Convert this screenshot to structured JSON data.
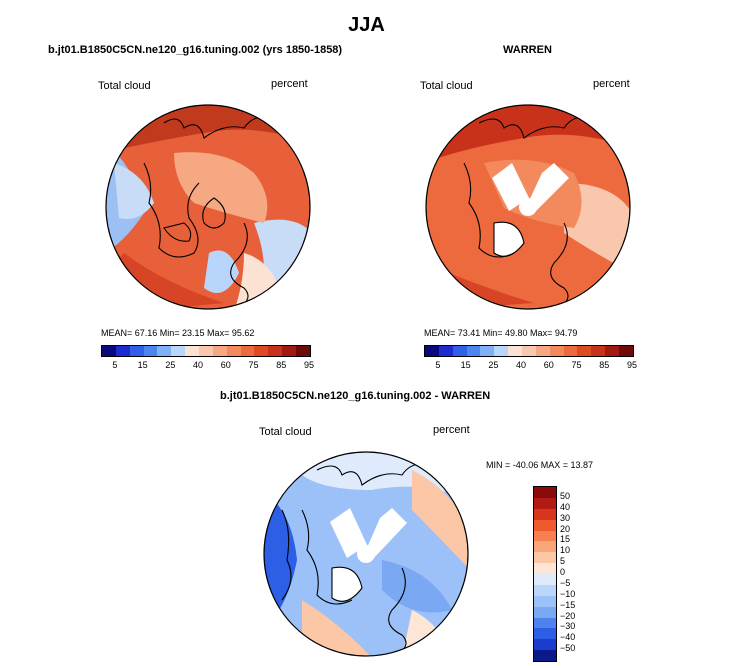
{
  "page_title": "JJA",
  "chart_data": [
    {
      "type": "polar-map",
      "title": "b.jt01.B1850C5CN.ne120_g16.tuning.002 (yrs 1850-1858)",
      "variable_label": "Total cloud",
      "units_label": "percent",
      "stats": "MEAN=   67.16   Min=   23.15   Max=   95.62",
      "mean": 67.16,
      "min": 23.15,
      "max": 95.62,
      "colorbar_ticks": [
        "5",
        "15",
        "25",
        "40",
        "60",
        "75",
        "85",
        "95"
      ]
    },
    {
      "type": "polar-map",
      "title": "WARREN",
      "variable_label": "Total cloud",
      "units_label": "percent",
      "stats": "MEAN=   73.41   Min=   49.80   Max=   94.79",
      "mean": 73.41,
      "min": 49.8,
      "max": 94.79,
      "colorbar_ticks": [
        "5",
        "15",
        "25",
        "40",
        "60",
        "75",
        "85",
        "95"
      ]
    },
    {
      "type": "polar-map",
      "title": "b.jt01.B1850C5CN.ne120_g16.tuning.002 - WARREN",
      "variable_label": "Total cloud",
      "units_label": "percent",
      "stats": "MIN =  -40.06  MAX =   13.87",
      "min": -40.06,
      "max": 13.87,
      "colorbar_ticks": [
        "50",
        "40",
        "30",
        "20",
        "15",
        "10",
        "5",
        "0",
        "−5",
        "−10",
        "−15",
        "−20",
        "−30",
        "−40",
        "−50"
      ]
    }
  ],
  "colors": {
    "abs_scale": [
      "#0a0a7a",
      "#1e2bd0",
      "#2f5fe6",
      "#4a86ee",
      "#7fb0f5",
      "#b8d6fb",
      "#fbe2d2",
      "#f8c7ad",
      "#f5a882",
      "#f28a5e",
      "#ec6a3e",
      "#e04a23",
      "#c8321a",
      "#a01a12",
      "#6e0a0a"
    ],
    "diff_scale": [
      "#8b0a0a",
      "#b21a12",
      "#d8361c",
      "#ee5a2e",
      "#f5824e",
      "#f8a57a",
      "#fbc7a6",
      "#fde6d6",
      "#dfeafc",
      "#bcd6fb",
      "#9cc0f8",
      "#7aa8f3",
      "#4f82ec",
      "#2c5ee6",
      "#1a3ccf",
      "#0a1a8a"
    ]
  }
}
